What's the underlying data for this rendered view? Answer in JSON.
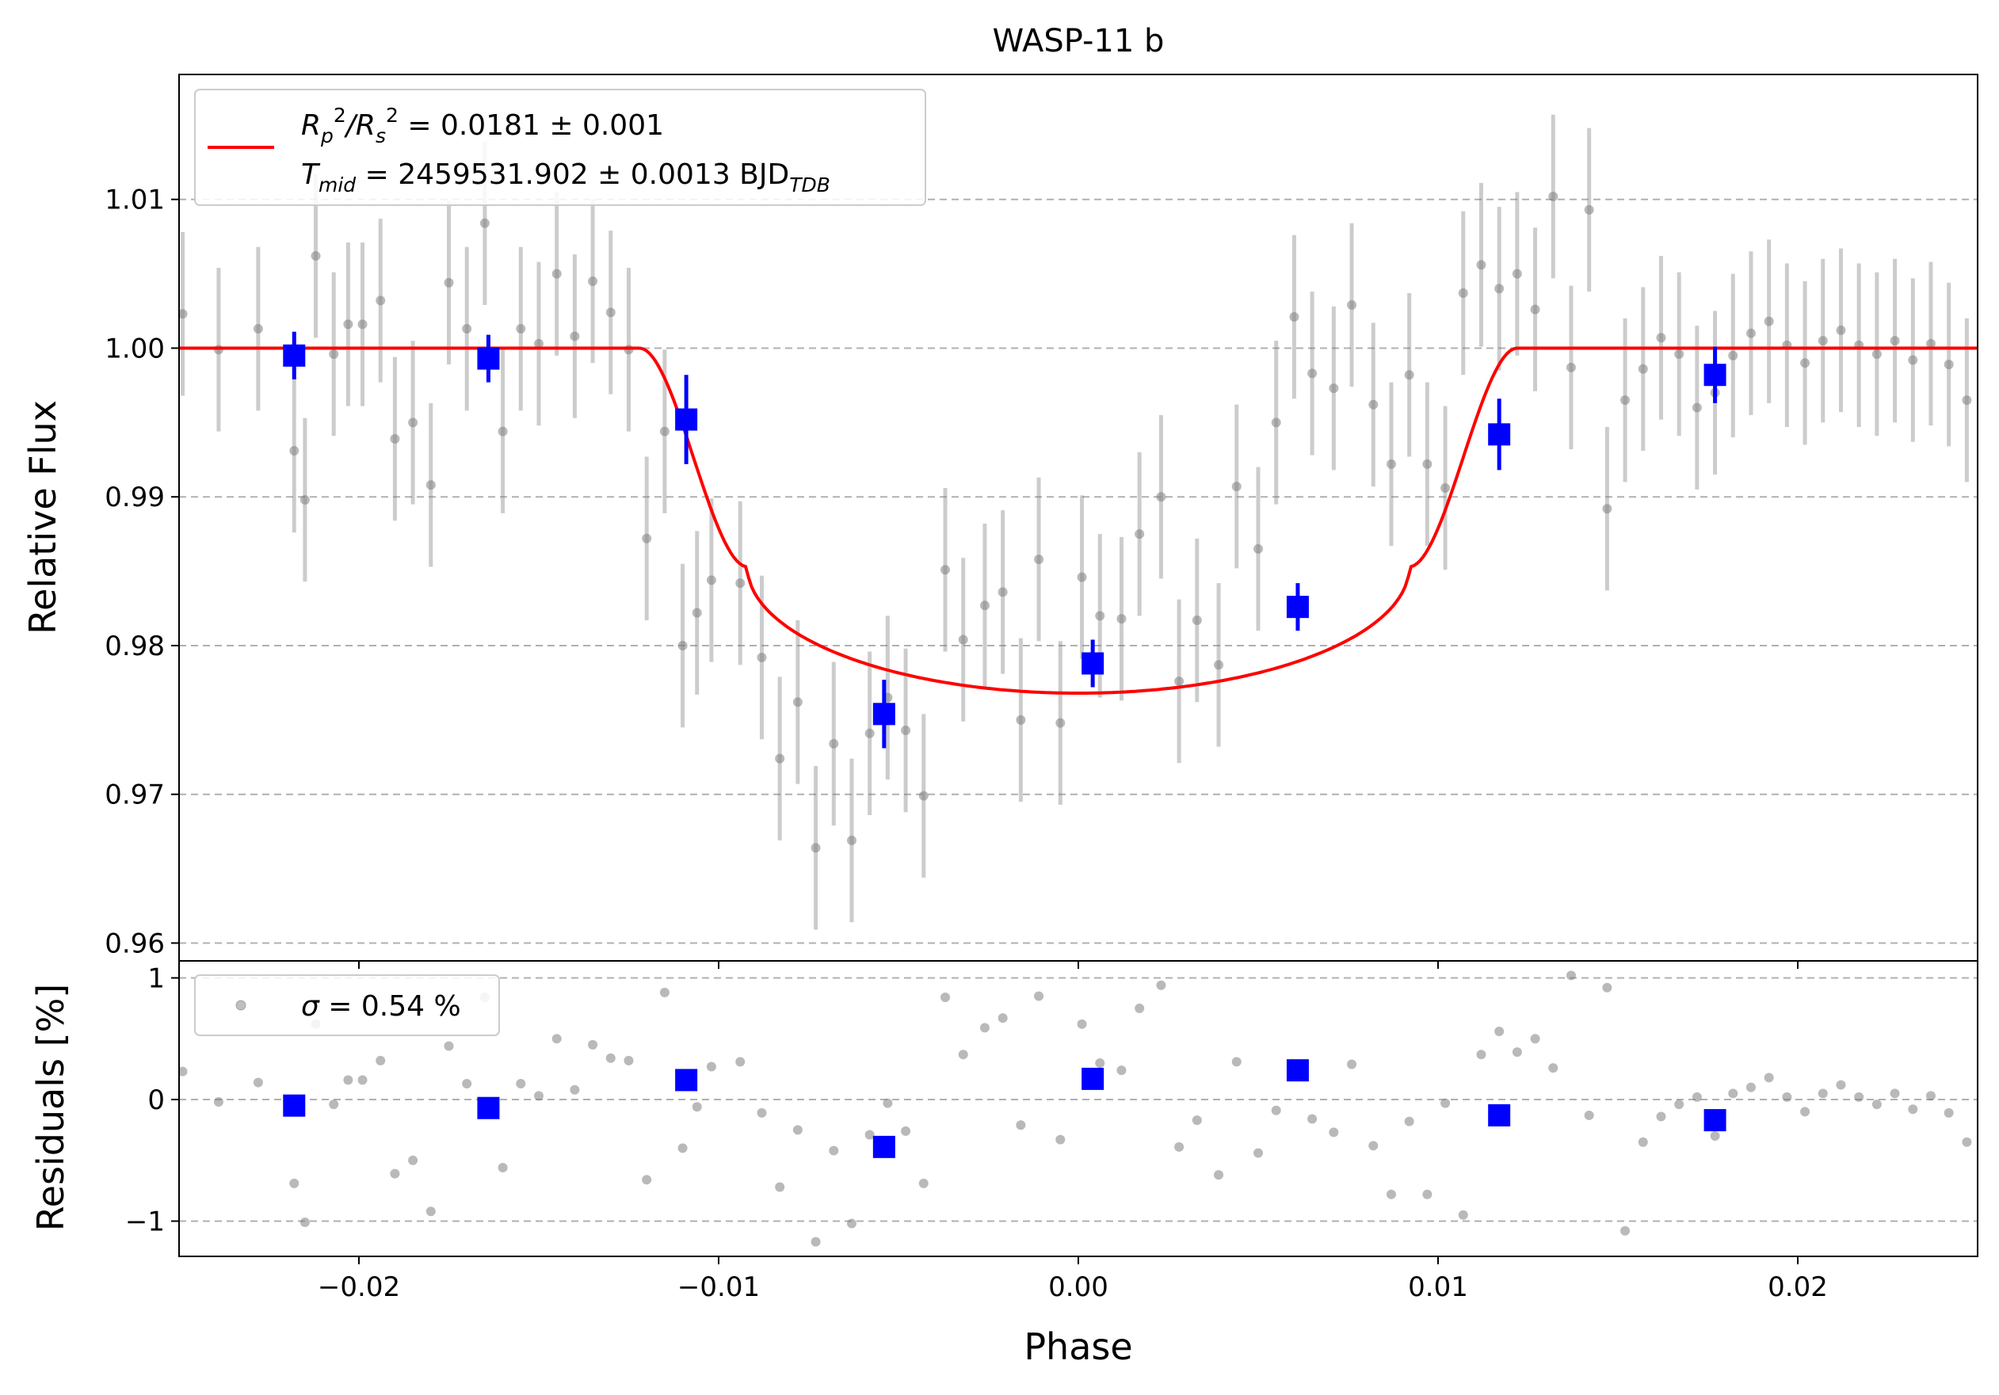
{
  "chart_data": {
    "type": "scatter",
    "title": "WASP-11 b",
    "xlabel": "Phase",
    "xlim": [
      -0.025,
      0.025
    ],
    "x_ticks": [
      -0.02,
      -0.01,
      0.0,
      0.01,
      0.02
    ],
    "x_tick_labels": [
      "−0.02",
      "−0.01",
      "0.00",
      "0.01",
      "0.02"
    ],
    "grid": "horizontal dashed",
    "legend_placement": "upper-left",
    "colors": {
      "raw": "#808080",
      "binned": "#0000ff",
      "model": "#ff0000",
      "grid": "#b0b0b0"
    },
    "panels": [
      {
        "name": "flux",
        "ylabel": "Relative Flux",
        "ylim": [
          0.9588,
          1.0184
        ],
        "y_ticks": [
          0.96,
          0.97,
          0.98,
          0.99,
          1.0,
          1.01
        ],
        "y_tick_labels": [
          "0.96",
          "0.97",
          "0.98",
          "0.99",
          "1.00",
          "1.01"
        ],
        "legend": {
          "line1_prefix": "R",
          "line1_sub1": "p",
          "line1_sup1": "2",
          "line1_slash": "/R",
          "line1_sub2": "s",
          "line1_sup2": "2",
          "line1_value": " = 0.0181 ± 0.001",
          "line2_prefix": "T",
          "line2_sub": "mid",
          "line2_value": " = 2459531.902 ± 0.0013 BJD",
          "line2_unit_sub": "TDB"
        },
        "model": {
          "depth": 0.0232,
          "ingress_start": -0.0122,
          "ingress_end": -0.0092,
          "egress_start": 0.0092,
          "egress_end": 0.0122,
          "bottom_at_contact": 0.9853
        },
        "raw": {
          "x": [
            -0.0249,
            -0.0239,
            -0.0228,
            -0.0218,
            -0.0215,
            -0.0212,
            -0.0207,
            -0.0203,
            -0.0199,
            -0.0194,
            -0.019,
            -0.0185,
            -0.018,
            -0.0175,
            -0.017,
            -0.0165,
            -0.016,
            -0.0155,
            -0.015,
            -0.0145,
            -0.014,
            -0.0135,
            -0.013,
            -0.0125,
            -0.012,
            -0.0115,
            -0.011,
            -0.0106,
            -0.0102,
            -0.0094,
            -0.0088,
            -0.0083,
            -0.0078,
            -0.0073,
            -0.0068,
            -0.0063,
            -0.0058,
            -0.0053,
            -0.0048,
            -0.0043,
            -0.0037,
            -0.0032,
            -0.0026,
            -0.0021,
            -0.0016,
            -0.0011,
            -0.0005,
            0.0001,
            0.0006,
            0.0012,
            0.0017,
            0.0023,
            0.0028,
            0.0033,
            0.0039,
            0.0044,
            0.005,
            0.0055,
            0.006,
            0.0065,
            0.0071,
            0.0076,
            0.0082,
            0.0087,
            0.0092,
            0.0097,
            0.0102,
            0.0107,
            0.0112,
            0.0117,
            0.0122,
            0.0127,
            0.0132,
            0.0137,
            0.0142,
            0.0147,
            0.0152,
            0.0157,
            0.0162,
            0.0167,
            0.0172,
            0.0177,
            0.0182,
            0.0187,
            0.0192,
            0.0197,
            0.0202,
            0.0207,
            0.0212,
            0.0217,
            0.0222,
            0.0227,
            0.0232,
            0.0237,
            0.0242,
            0.0247
          ],
          "y": [
            1.0023,
            0.9999,
            1.0013,
            0.9931,
            0.9898,
            1.0062,
            0.9996,
            1.0016,
            1.0016,
            1.0032,
            0.9939,
            0.995,
            0.9908,
            1.0044,
            1.0013,
            1.0084,
            0.9944,
            1.0013,
            1.0003,
            1.005,
            1.0008,
            1.0045,
            1.0024,
            0.9999,
            0.9872,
            0.9944,
            0.98,
            0.9822,
            0.9844,
            0.9842,
            0.9792,
            0.9724,
            0.9762,
            0.9664,
            0.9734,
            0.9669,
            0.9741,
            0.9765,
            0.9743,
            0.9699,
            0.9851,
            0.9804,
            0.9827,
            0.9836,
            0.975,
            0.9858,
            0.9748,
            0.9846,
            0.982,
            0.9818,
            0.9875,
            0.99,
            0.9776,
            0.9817,
            0.9787,
            0.9907,
            0.9865,
            0.995,
            1.0021,
            0.9983,
            0.9973,
            1.0029,
            0.9962,
            0.9922,
            0.9982,
            0.9922,
            0.9906,
            1.0037,
            1.0056,
            1.004,
            1.005,
            1.0026,
            1.0102,
            0.9987,
            1.0093,
            0.9892,
            0.9965,
            0.9986,
            1.0007,
            0.9996,
            0.996,
            0.997,
            0.9995,
            1.001,
            1.0018,
            1.0002,
            0.999,
            1.0005,
            1.0012,
            1.0002,
            0.9996,
            1.0005,
            0.9992,
            1.0003,
            0.9989,
            0.9965
          ],
          "yerr": 0.0055
        },
        "binned": {
          "x": [
            -0.0218,
            -0.0164,
            -0.0109,
            -0.0054,
            0.0004,
            0.0061,
            0.0117,
            0.0177
          ],
          "y": [
            0.9995,
            0.9993,
            0.9952,
            0.9754,
            0.9788,
            0.9826,
            0.9942,
            0.9982
          ],
          "yerr": [
            0.0016,
            0.0016,
            0.003,
            0.0023,
            0.0016,
            0.0016,
            0.0024,
            0.0019
          ]
        }
      },
      {
        "name": "residuals",
        "ylabel": "Residuals [%]",
        "ylim": [
          -1.29,
          1.14
        ],
        "y_ticks": [
          -1,
          0,
          1
        ],
        "y_tick_labels": [
          "−1",
          "0",
          "1"
        ],
        "legend": {
          "sigma_symbol": "σ",
          "sigma_value": " = 0.54 %"
        },
        "raw": {
          "x": [
            -0.0249,
            -0.0239,
            -0.0228,
            -0.0218,
            -0.0215,
            -0.0212,
            -0.0207,
            -0.0203,
            -0.0199,
            -0.0194,
            -0.019,
            -0.0185,
            -0.018,
            -0.0175,
            -0.017,
            -0.0165,
            -0.016,
            -0.0155,
            -0.015,
            -0.0145,
            -0.014,
            -0.0135,
            -0.013,
            -0.0125,
            -0.012,
            -0.0115,
            -0.011,
            -0.0106,
            -0.0102,
            -0.0094,
            -0.0088,
            -0.0083,
            -0.0078,
            -0.0073,
            -0.0068,
            -0.0063,
            -0.0058,
            -0.0053,
            -0.0048,
            -0.0043,
            -0.0037,
            -0.0032,
            -0.0026,
            -0.0021,
            -0.0016,
            -0.0011,
            -0.0005,
            0.0001,
            0.0006,
            0.0012,
            0.0017,
            0.0023,
            0.0028,
            0.0033,
            0.0039,
            0.0044,
            0.005,
            0.0055,
            0.006,
            0.0065,
            0.0071,
            0.0076,
            0.0082,
            0.0087,
            0.0092,
            0.0097,
            0.0102,
            0.0107,
            0.0112,
            0.0117,
            0.0122,
            0.0127,
            0.0132,
            0.0137,
            0.0142,
            0.0147,
            0.0152,
            0.0157,
            0.0162,
            0.0167,
            0.0172,
            0.0177,
            0.0182,
            0.0187,
            0.0192,
            0.0197,
            0.0202,
            0.0207,
            0.0212,
            0.0217,
            0.0222,
            0.0227,
            0.0232,
            0.0237,
            0.0242,
            0.0247
          ],
          "y": [
            0.23,
            -0.02,
            0.14,
            -0.69,
            -1.01,
            0.62,
            -0.04,
            0.16,
            0.16,
            0.32,
            -0.61,
            -0.5,
            -0.92,
            0.44,
            0.13,
            0.84,
            -0.56,
            0.13,
            0.03,
            0.5,
            0.08,
            0.45,
            0.34,
            0.32,
            -0.66,
            0.88,
            -0.4,
            -0.06,
            0.27,
            0.31,
            -0.11,
            -0.72,
            -0.25,
            -1.17,
            -0.42,
            -1.02,
            -0.29,
            -0.03,
            -0.26,
            -0.69,
            0.84,
            0.37,
            0.59,
            0.67,
            -0.21,
            0.85,
            -0.33,
            0.62,
            0.3,
            0.24,
            0.75,
            0.94,
            -0.39,
            -0.17,
            -0.62,
            0.31,
            -0.44,
            -0.09,
            0.23,
            -0.16,
            -0.27,
            0.29,
            -0.38,
            -0.78,
            -0.18,
            -0.78,
            -0.03,
            -0.95,
            0.37,
            0.56,
            0.39,
            0.5,
            0.26,
            1.02,
            -0.13,
            0.92,
            -1.08,
            -0.35,
            -0.14,
            -0.04,
            0.02,
            -0.3,
            0.05,
            0.1,
            0.18,
            0.02,
            -0.1,
            0.05,
            0.12,
            0.02,
            -0.04,
            0.05,
            -0.08,
            0.03,
            -0.11,
            -0.35
          ],
          "note_binned_residuals": ""
        },
        "binned": {
          "x": [
            -0.0218,
            -0.0164,
            -0.0109,
            -0.0054,
            0.0004,
            0.0061,
            0.0117,
            0.0177
          ],
          "y": [
            -0.05,
            -0.07,
            0.16,
            -0.39,
            0.17,
            0.24,
            -0.13,
            -0.17
          ]
        }
      }
    ]
  }
}
